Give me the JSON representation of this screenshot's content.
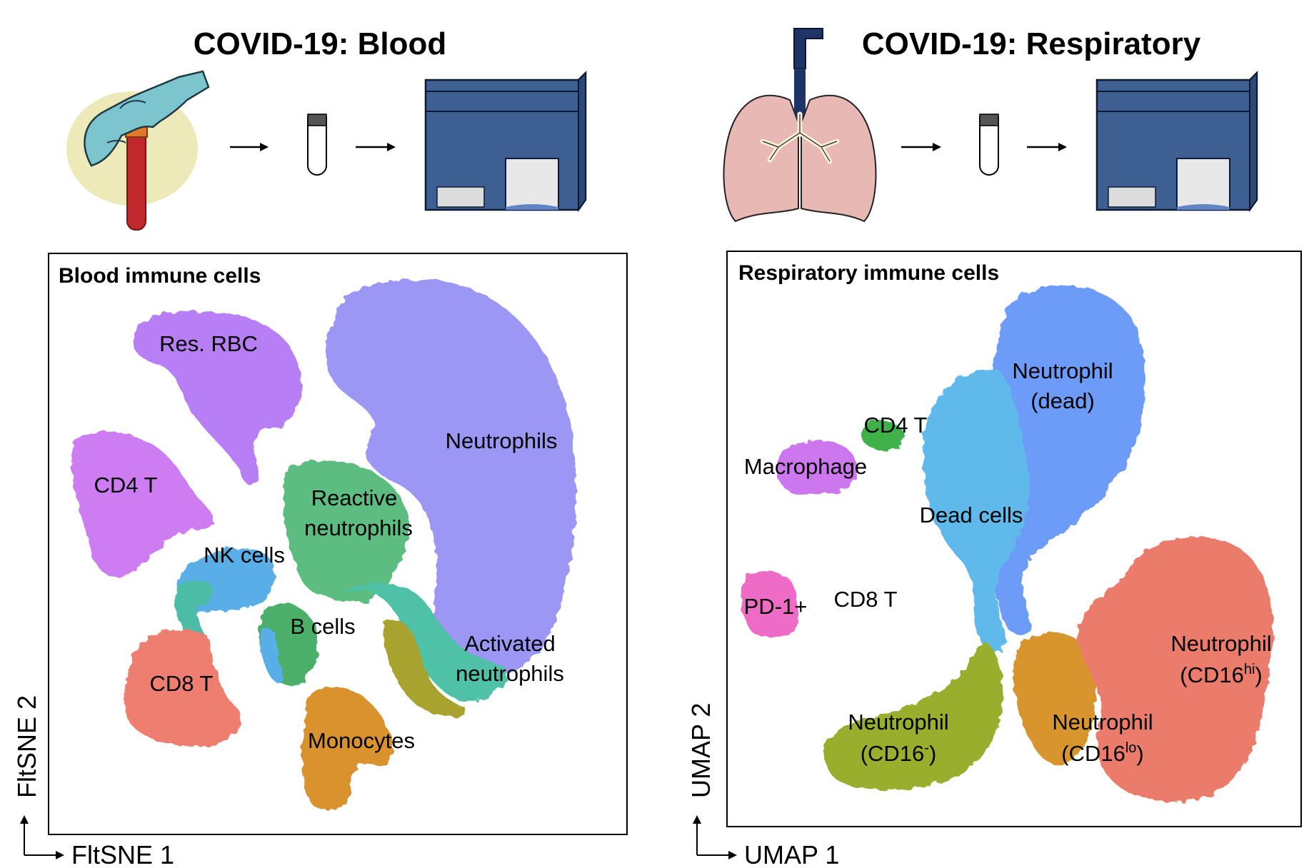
{
  "panels": {
    "blood": {
      "title": "COVID-19: Blood",
      "plot_title": "Blood immune cells",
      "x_axis": "FltSNE 1",
      "y_axis": "FltSNE 2",
      "clusters": [
        {
          "label": "Res. RBC",
          "color": "#b77ef5"
        },
        {
          "label": "CD4 T",
          "color": "#cd7bf2"
        },
        {
          "label": "NK cells",
          "color": "#5aaee8"
        },
        {
          "label": "CD8 T",
          "color": "#ee7e6f"
        },
        {
          "label": "B cells",
          "color": "#4caf6a"
        },
        {
          "label": "Monocytes",
          "color": "#d9922e"
        },
        {
          "label": "Reactive",
          "color": "#5dbd81"
        },
        {
          "label": "neutrophils",
          "color": "#5dbd81"
        },
        {
          "label": "Neutrophils",
          "color": "#9c96f5"
        },
        {
          "label": "Activated",
          "color": "#50c1a6"
        },
        {
          "label": "neutrophils",
          "color": "#50c1a6"
        }
      ]
    },
    "resp": {
      "title": "COVID-19: Respiratory",
      "plot_title": "Respiratory immune cells",
      "x_axis": "UMAP 1",
      "y_axis": "UMAP 2",
      "clusters": [
        {
          "label": "Neutrophil",
          "color": "#6c9cf7"
        },
        {
          "label": "(dead)",
          "color": "#6c9cf7"
        },
        {
          "label": "CD4 T",
          "color": "#3fb14a"
        },
        {
          "label": "Macrophage",
          "color": "#cc77ee"
        },
        {
          "label": "Dead cells",
          "color": "#5fb9ea"
        },
        {
          "label": "PD-1+",
          "color": "#ee6cc6"
        },
        {
          "label": "CD8 T",
          "color": "#3fb8a8"
        },
        {
          "label": "Neutrophil",
          "color": "#eb7c6c"
        },
        {
          "label": "Neutrophil",
          "color": "#9aae2e"
        },
        {
          "label": "Neutrophil",
          "color": "#d8952e"
        }
      ],
      "cd16_hi": {
        "prefix": "(CD16",
        "sup": "hi",
        "suffix": ")"
      },
      "cd16_neg": {
        "prefix": "(CD16",
        "sup": "-",
        "suffix": ")"
      },
      "cd16_lo": {
        "prefix": "(CD16",
        "sup": "lo",
        "suffix": ")"
      }
    }
  },
  "colors": {
    "glove": "#7cc5cf",
    "blood_tube": "#c0282b",
    "machine": "#3d5f91",
    "lung": "#e8b8b4",
    "trachea": "#1f3466"
  }
}
